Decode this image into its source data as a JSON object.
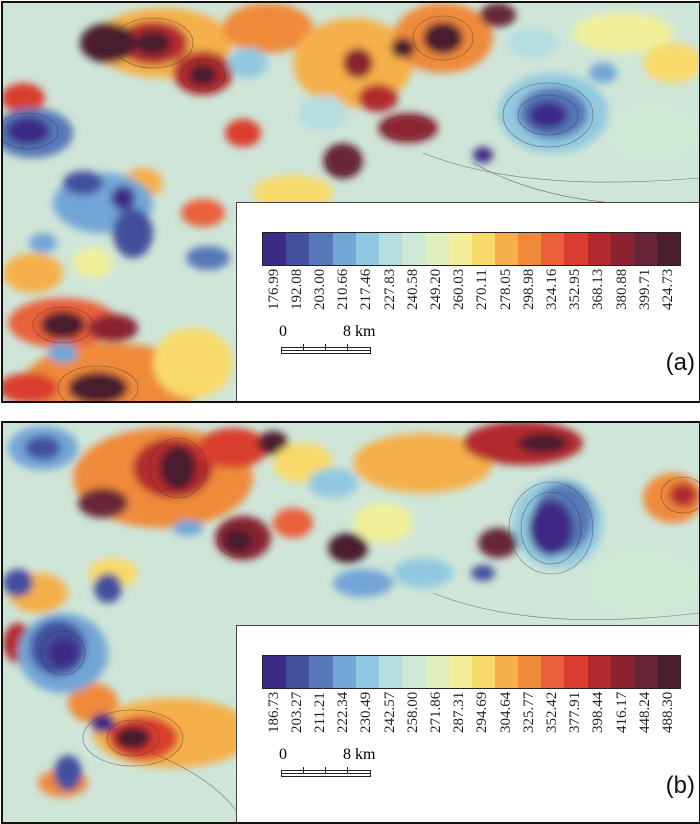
{
  "panels": [
    {
      "label": "(a)",
      "colorbar": {
        "ticks": [
          "176.99",
          "192.08",
          "203.00",
          "210.66",
          "217.46",
          "227.83",
          "240.58",
          "249.20",
          "260.03",
          "270.11",
          "278.05",
          "298.98",
          "324.16",
          "352.95",
          "368.13",
          "380.88",
          "399.71",
          "424.73"
        ]
      },
      "scale": {
        "zero": "0",
        "unit": "8 km"
      }
    },
    {
      "label": "(b)",
      "colorbar": {
        "ticks": [
          "186.73",
          "203.27",
          "211.21",
          "222.34",
          "230.49",
          "242.57",
          "258.00",
          "271.86",
          "287.31",
          "294.69",
          "304.64",
          "325.77",
          "352.42",
          "377.91",
          "398.44",
          "416.17",
          "448.24",
          "488.30"
        ]
      },
      "scale": {
        "zero": "0",
        "unit": "8 km"
      }
    }
  ],
  "palette": [
    "#3d2a86",
    "#42509e",
    "#5778b8",
    "#72a6d6",
    "#92c9e0",
    "#b6dde0",
    "#cde8d4",
    "#e1efbf",
    "#f2f09a",
    "#f8da6a",
    "#f5b04b",
    "#ef8a3b",
    "#e9603a",
    "#d93d2f",
    "#b22a2e",
    "#8a2230",
    "#672537",
    "#4a1e2d"
  ]
}
